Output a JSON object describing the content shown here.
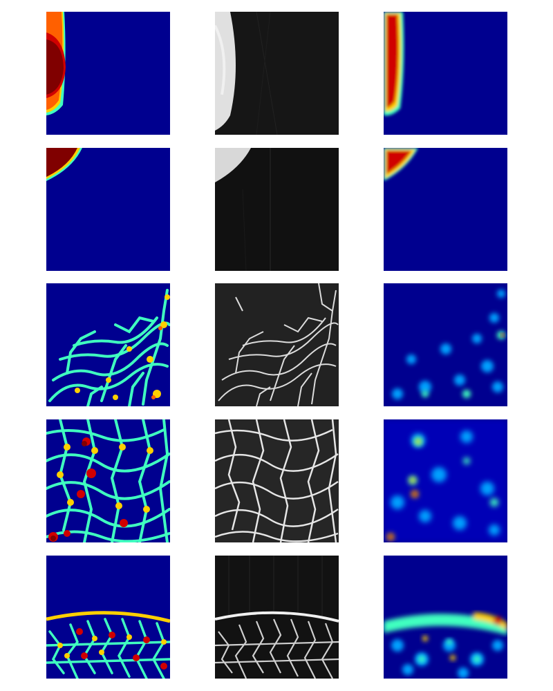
{
  "figure": {
    "background": "#ffffff",
    "layout": {
      "rows": 5,
      "columns": 3
    },
    "column_kinds": [
      "segmentation-label-map",
      "grayscale-ct-slice",
      "density-heatmap"
    ],
    "colormap": [
      "#00008f",
      "#0000ff",
      "#00a0ff",
      "#40ffc0",
      "#c0ff40",
      "#ffd000",
      "#ff6000",
      "#d00000",
      "#800000"
    ],
    "rows_content": [
      {
        "label": "",
        "subject": "bone-edge-left"
      },
      {
        "label": "",
        "subject": "bone-corner-top-left"
      },
      {
        "label": "",
        "subject": "trabecular-network-sparse"
      },
      {
        "label": "",
        "subject": "trabecular-network-dense"
      },
      {
        "label": "",
        "subject": "cortical-arc-with-trabeculae"
      }
    ]
  }
}
